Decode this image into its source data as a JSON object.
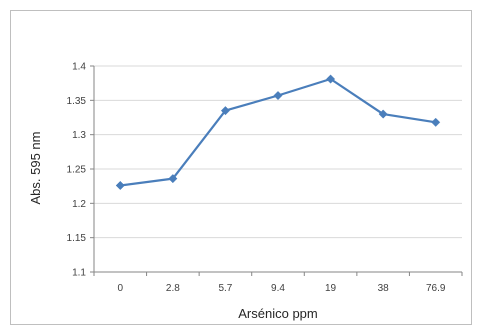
{
  "chart_data": {
    "type": "line",
    "title": "",
    "xlabel": "Arsénico ppm",
    "ylabel": "Abs. 595 nm",
    "categories": [
      "0",
      "2.8",
      "5.7",
      "9.4",
      "19",
      "38",
      "76.9"
    ],
    "series": [
      {
        "values": [
          1.226,
          1.236,
          1.335,
          1.357,
          1.381,
          1.33,
          1.318
        ]
      }
    ],
    "ylim": [
      1.1,
      1.4
    ],
    "yticks": [
      "1.1",
      "1.15",
      "1.2",
      "1.25",
      "1.3",
      "1.35",
      "1.4"
    ],
    "grid": true,
    "legend": "none",
    "colors": {
      "line": "#4a7ebb",
      "marker": "#4a7ebb",
      "grid": "#d9d9d9",
      "axis": "#868686"
    }
  }
}
